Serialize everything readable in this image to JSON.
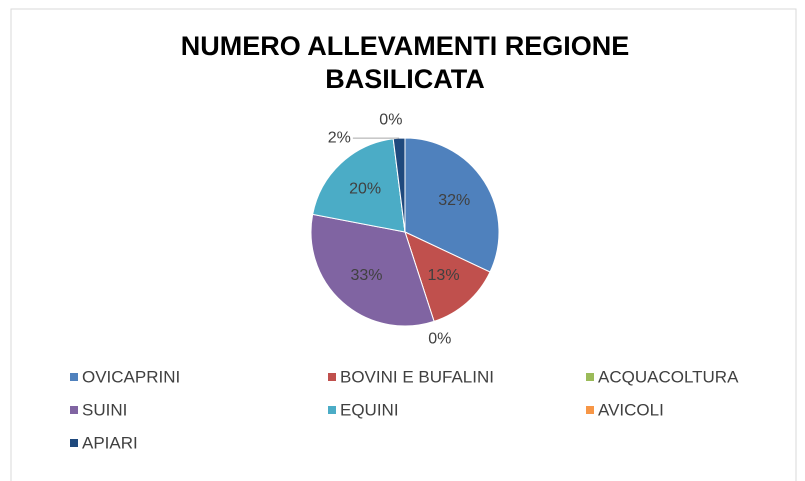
{
  "chart_data": {
    "type": "pie",
    "title": "NUMERO ALLEVAMENTI REGIONE BASILICATA",
    "categories": [
      "OVICAPRINI",
      "BOVINI E BUFALINI",
      "ACQUACOLTURA",
      "SUINI",
      "EQUINI",
      "AVICOLI",
      "APIARI"
    ],
    "values": [
      32,
      13,
      0,
      33,
      20,
      0,
      2
    ],
    "value_labels": [
      "32%",
      "13%",
      "0%",
      "33%",
      "20%",
      "0%",
      "2%"
    ],
    "colors": [
      "#4f81bd",
      "#c0504d",
      "#9bbb59",
      "#8064a2",
      "#4bacc6",
      "#f79646",
      "#1f497d"
    ],
    "legend": "bottom"
  }
}
